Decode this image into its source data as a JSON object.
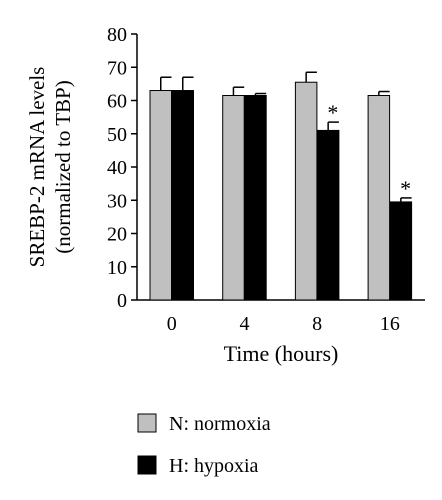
{
  "chart_data": {
    "type": "bar",
    "xlabel": "Time (hours)",
    "ylabel_line1": "SREBP-2 mRNA levels",
    "ylabel_line2": "(normalized to TBP)",
    "categories": [
      "0",
      "4",
      "8",
      "16"
    ],
    "ylim": [
      0,
      80
    ],
    "yticks": [
      0,
      10,
      20,
      30,
      40,
      50,
      60,
      70,
      80
    ],
    "series": [
      {
        "name": "N: normoxia",
        "color": "#c0c0c0",
        "values": [
          63,
          61.5,
          65.5,
          61.5
        ],
        "errors": [
          4,
          2.5,
          3,
          1.2
        ],
        "significance": [
          "",
          "",
          "",
          ""
        ]
      },
      {
        "name": "H: hypoxia",
        "color": "#000000",
        "values": [
          63,
          61.5,
          51,
          29.5
        ],
        "errors": [
          4,
          0.6,
          2.5,
          1.2
        ],
        "significance": [
          "",
          "",
          "*",
          "*"
        ]
      }
    ],
    "legend_position": "bottom-left",
    "grid": false
  }
}
